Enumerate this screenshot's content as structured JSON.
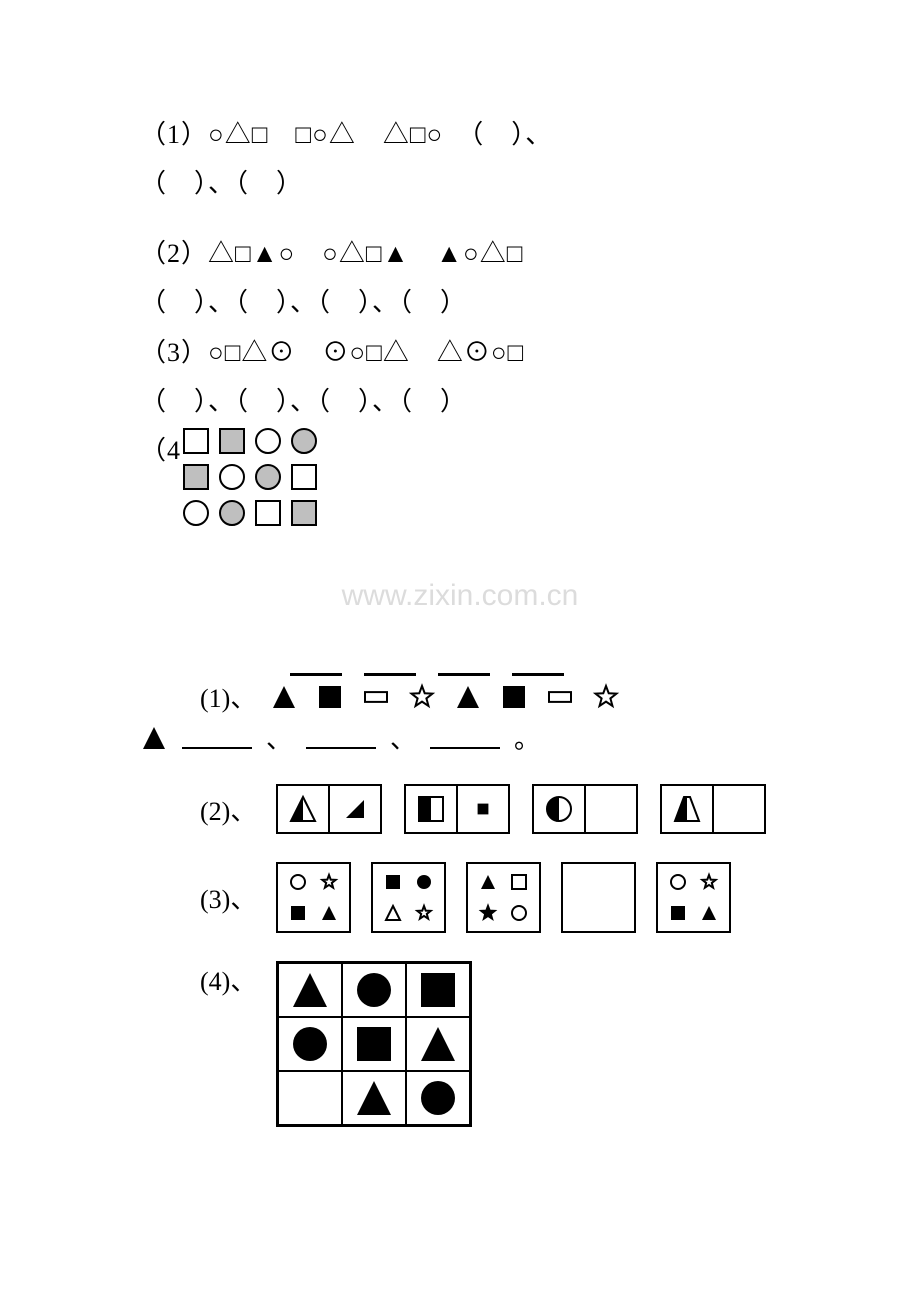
{
  "problems": {
    "p1": {
      "label": "（1）",
      "seq": "○△□　□○△　△□○　（　）、",
      "cont": "（　）、（　）"
    },
    "p2": {
      "label": "（2）",
      "seq": "△□▲○　○△□▲　▲○△□",
      "cont": "（　）、（　）、（　）、（　）"
    },
    "p3": {
      "label": "（3）",
      "seq": "○□△⊙　⊙○□△　△⊙○□",
      "cont": "（　）、（　）、（　）、（　）"
    },
    "p4": {
      "label": "（4",
      "grid": {
        "rows": [
          [
            "sq-o",
            "sq-g",
            "ci-o",
            "ci-g"
          ],
          [
            "sq-g",
            "ci-o",
            "ci-g",
            "sq-o"
          ],
          [
            "ci-o",
            "ci-g",
            "sq-o",
            "sq-g"
          ]
        ],
        "colors": {
          "outline": "#000000",
          "fill_gray": "#bfbfbf",
          "fill_white": "#ffffff"
        },
        "size": 30
      }
    }
  },
  "watermark": "www.zixin.com.cn",
  "seq2": {
    "p1": {
      "label": "(1)、",
      "pattern": [
        "tri-f",
        "sq-f",
        "rect-o",
        "star-o",
        "tri-f",
        "sq-f",
        "rect-o",
        "star-o"
      ],
      "lead": "tri-f",
      "blanks": 3
    },
    "p2": {
      "label": "(2)、",
      "pairs": [
        {
          "left": "tri-half",
          "right": "tri-small"
        },
        {
          "left": "sq-half",
          "right": "sq-small"
        },
        {
          "left": "ci-half",
          "right": ""
        },
        {
          "left": "trap-half",
          "right": ""
        }
      ]
    },
    "p3": {
      "label": "(3)、",
      "boxes": [
        [
          "ci-o",
          "star-o",
          "sq-f",
          "tri-f"
        ],
        [
          "sq-f",
          "ci-f",
          "tri-o",
          "star-o"
        ],
        [
          "tri-f",
          "sq-o",
          "star-f",
          "ci-o"
        ],
        [
          "",
          "",
          "",
          ""
        ],
        [
          "ci-o",
          "star-o",
          "sq-f",
          "tri-f"
        ]
      ]
    },
    "p4": {
      "label": "(4)、",
      "grid": [
        [
          "tri-f",
          "ci-f",
          "sq-f"
        ],
        [
          "ci-f",
          "sq-f",
          "tri-f"
        ],
        [
          "",
          "tri-f",
          "ci-f"
        ]
      ]
    }
  },
  "style": {
    "bg": "#ffffff",
    "text": "#000000",
    "stroke_w": 2,
    "icon_size": 28,
    "icon_size_sm": 20
  }
}
